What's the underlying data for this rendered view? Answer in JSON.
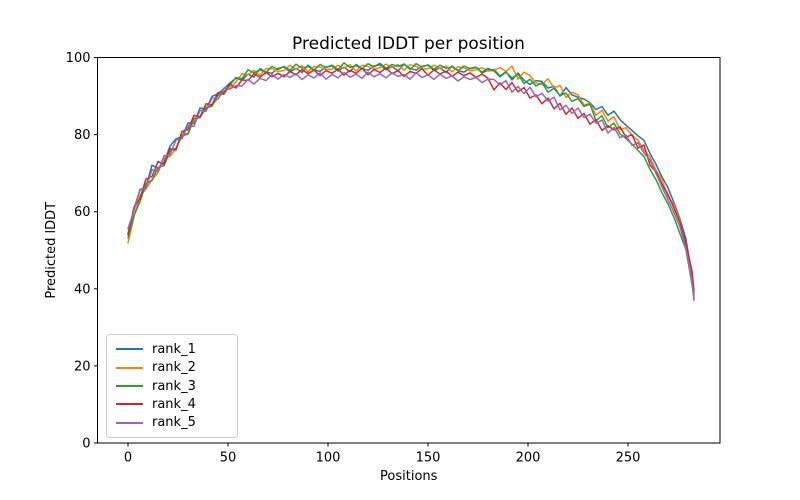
{
  "figure": {
    "title": "Predicted lDDT per position",
    "xlabel": "Positions",
    "ylabel": "Predicted lDDT"
  },
  "legend": {
    "items": [
      {
        "label": "rank_1",
        "color": "#1f77b4"
      },
      {
        "label": "rank_2",
        "color": "#ff7f0e"
      },
      {
        "label": "rank_3",
        "color": "#2ca02c"
      },
      {
        "label": "rank_4",
        "color": "#d62728"
      },
      {
        "label": "rank_5",
        "color": "#9467bd"
      }
    ]
  },
  "chart_data": {
    "type": "line",
    "title": "Predicted lDDT per position",
    "xlabel": "Positions",
    "ylabel": "Predicted lDDT",
    "xlim": [
      -15.25,
      296
    ],
    "ylim": [
      0,
      100
    ],
    "xticks": [
      0,
      50,
      100,
      150,
      200,
      250
    ],
    "yticks": [
      0,
      20,
      40,
      60,
      80,
      100
    ],
    "grid": false,
    "legend_position": "lower left",
    "x_start": 0,
    "x_step": 3,
    "x_max": 283,
    "series": [
      {
        "name": "rank_1",
        "color": "#1f77b4",
        "values": [
          54.3,
          60.9,
          65.6,
          66.4,
          72.1,
          71.2,
          72.8,
          77.0,
          78.9,
          79.4,
          83.0,
          82.9,
          86.9,
          86.5,
          89.9,
          90.6,
          91.9,
          93.4,
          94.6,
          94.1,
          95.7,
          94.9,
          97.1,
          96.2,
          95.9,
          97.2,
          97.5,
          96.3,
          97.2,
          96.1,
          98.0,
          96.8,
          96.4,
          97.5,
          97.8,
          96.5,
          97.5,
          96.3,
          98.2,
          97.1,
          96.7,
          97.8,
          98.1,
          96.8,
          97.7,
          96.5,
          98.3,
          97.2,
          96.7,
          97.7,
          98.0,
          96.6,
          97.3,
          96.1,
          97.8,
          96.6,
          96.2,
          97.2,
          97.5,
          96.0,
          96.7,
          96.9,
          95.2,
          96.3,
          94.2,
          96.0,
          94.1,
          93.0,
          94.0,
          93.8,
          92.1,
          92.5,
          90.0,
          92.2,
          90.3,
          89.7,
          89.2,
          88.3,
          86.5,
          87.3,
          85.0,
          86.1,
          83.9,
          82.4,
          81.1,
          79.7,
          78.5,
          75.1,
          72.3,
          69.0,
          66.2,
          62.3,
          58.1,
          52.9,
          43.0,
          38.7
        ]
      },
      {
        "name": "rank_2",
        "color": "#ff7f0e",
        "values": [
          51.9,
          58.6,
          64.2,
          65.9,
          68.3,
          70.1,
          74.0,
          74.3,
          76.5,
          79.8,
          80.4,
          83.6,
          84.7,
          87.2,
          87.8,
          89.3,
          91.4,
          92.0,
          93.7,
          95.8,
          95.5,
          96.7,
          95.4,
          97.1,
          97.1,
          96.4,
          96.6,
          98.0,
          97.0,
          97.9,
          96.3,
          97.7,
          97.5,
          96.9,
          97.0,
          98.0,
          97.2,
          98.1,
          96.5,
          98.0,
          97.7,
          97.1,
          97.3,
          98.3,
          97.4,
          98.2,
          96.7,
          98.1,
          97.7,
          97.0,
          97.1,
          98.0,
          97.1,
          97.8,
          96.3,
          97.6,
          97.3,
          96.6,
          96.8,
          97.3,
          96.5,
          96.6,
          97.4,
          96.4,
          97.8,
          94.4,
          96.2,
          95.3,
          93.4,
          93.0,
          94.5,
          92.1,
          92.8,
          89.6,
          91.0,
          90.3,
          87.7,
          88.1,
          85.0,
          86.3,
          83.5,
          84.7,
          81.3,
          81.8,
          79.8,
          78.6,
          75.9,
          74.2,
          70.8,
          68.2,
          63.9,
          61.7,
          57.6,
          51.3,
          43.2,
          38.2
        ]
      },
      {
        "name": "rank_3",
        "color": "#2ca02c",
        "values": [
          53.2,
          59.1,
          62.6,
          67.3,
          68.1,
          71.5,
          71.9,
          75.8,
          76.4,
          79.7,
          80.1,
          84.2,
          84.4,
          86.9,
          87.4,
          90.3,
          90.5,
          92.9,
          94.8,
          94.5,
          96.8,
          96.0,
          96.8,
          96.1,
          97.7,
          96.9,
          97.7,
          96.7,
          98.3,
          97.2,
          97.7,
          96.7,
          98.2,
          97.4,
          98.0,
          96.9,
          98.6,
          97.4,
          97.9,
          97.1,
          98.4,
          97.6,
          98.5,
          97.2,
          98.2,
          97.7,
          98.3,
          96.9,
          98.4,
          97.5,
          98.1,
          97.0,
          98.0,
          97.2,
          97.6,
          96.6,
          97.8,
          97.1,
          97.4,
          96.2,
          97.2,
          96.5,
          95.0,
          96.2,
          94.7,
          95.7,
          93.2,
          94.4,
          92.6,
          93.5,
          91.0,
          92.0,
          90.1,
          90.8,
          88.6,
          89.4,
          87.3,
          87.9,
          83.6,
          84.9,
          81.8,
          83.0,
          80.2,
          79.0,
          77.5,
          75.9,
          74.3,
          71.0,
          68.3,
          64.9,
          62.0,
          58.5,
          54.3,
          50.1,
          41.2,
          37.5
        ]
      },
      {
        "name": "rank_4",
        "color": "#d62728",
        "values": [
          54.0,
          61.2,
          63.4,
          68.5,
          69.1,
          73.0,
          72.3,
          76.4,
          76.0,
          80.8,
          81.3,
          85.0,
          84.6,
          88.0,
          87.7,
          90.9,
          90.8,
          93.1,
          92.1,
          94.2,
          94.0,
          95.8,
          94.9,
          96.1,
          95.0,
          95.9,
          95.0,
          96.4,
          95.5,
          96.9,
          95.8,
          96.7,
          95.3,
          96.6,
          95.9,
          97.0,
          95.4,
          96.7,
          95.9,
          97.2,
          95.5,
          96.9,
          96.1,
          97.3,
          95.8,
          96.6,
          95.1,
          96.4,
          95.9,
          97.1,
          95.4,
          96.8,
          95.7,
          96.5,
          95.1,
          96.2,
          95.3,
          96.0,
          94.8,
          95.7,
          94.6,
          91.6,
          93.4,
          91.7,
          93.5,
          91.1,
          92.2,
          89.5,
          90.3,
          88.0,
          89.5,
          86.7,
          88.1,
          85.3,
          86.9,
          84.2,
          85.5,
          82.7,
          83.9,
          81.1,
          82.3,
          81.2,
          82.0,
          79.3,
          80.0,
          76.5,
          77.3,
          72.1,
          70.3,
          67.1,
          64.5,
          60.9,
          57.2,
          51.8,
          44.6,
          39.5
        ]
      },
      {
        "name": "rank_5",
        "color": "#9467bd",
        "values": [
          55.6,
          60.3,
          65.8,
          66.1,
          70.9,
          70.4,
          74.5,
          74.8,
          78.6,
          78.9,
          82.4,
          82.1,
          86.3,
          86.0,
          89.5,
          89.2,
          92.1,
          91.8,
          92.7,
          92.6,
          94.3,
          93.1,
          94.6,
          94.0,
          95.6,
          94.4,
          95.6,
          94.8,
          95.8,
          94.3,
          95.5,
          94.7,
          96.0,
          94.4,
          95.6,
          94.7,
          96.1,
          94.9,
          95.7,
          94.6,
          96.2,
          95.0,
          95.8,
          94.7,
          96.0,
          95.1,
          95.6,
          94.4,
          96.0,
          94.8,
          95.5,
          94.3,
          95.7,
          94.6,
          95.2,
          93.9,
          95.0,
          94.3,
          94.8,
          93.5,
          94.4,
          94.3,
          92.9,
          94.0,
          91.0,
          92.5,
          90.6,
          92.3,
          89.8,
          90.7,
          88.7,
          89.7,
          86.4,
          87.6,
          85.5,
          86.9,
          84.4,
          85.3,
          82.9,
          83.8,
          80.4,
          81.9,
          79.2,
          79.9,
          77.2,
          77.9,
          75.2,
          73.4,
          69.9,
          66.4,
          63.1,
          59.8,
          56.0,
          50.4,
          42.1,
          37.0
        ]
      }
    ]
  }
}
